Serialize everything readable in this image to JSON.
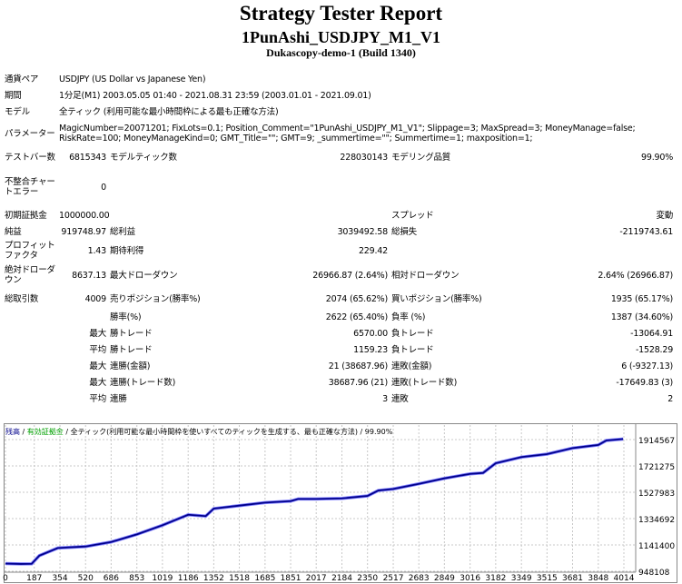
{
  "header": {
    "title": "Strategy Tester Report",
    "subtitle": "1PunAshi_USDJPY_M1_V1",
    "server": "Dukascopy-demo-1 (Build 1340)"
  },
  "info": [
    {
      "label": "通貨ペア",
      "value": "USDJPY (US Dollar vs Japanese Yen)"
    },
    {
      "label": "期間",
      "value": "1分足(M1) 2003.05.05 01:40 - 2021.08.31 23:59 (2003.01.01 - 2021.09.01)"
    },
    {
      "label": "モデル",
      "value": "全ティック (利用可能な最小時間枠による最も正確な方法)"
    },
    {
      "label": "パラメーター",
      "value": "MagicNumber=20071201; FixLots=0.1; Position_Comment=\"1PunAshi_USDJPY_M1_V1\"; Slippage=3; MaxSpread=3; MoneyManage=false; RiskRate=100; MoneyManageKind=0; GMT_Title=\"\"; GMT=9; _summertime=\"\"; Summertime=1; maxposition=1;"
    }
  ],
  "stats": [
    [
      "テストバー数",
      "6815343",
      "モデルティック数",
      "228030143",
      "モデリング品質",
      "99.90%"
    ],
    [
      "不整合チャートエラー",
      "0",
      "",
      "",
      "",
      ""
    ],
    [
      "初期証拠金",
      "1000000.00",
      "",
      "",
      "スプレッド",
      "変動"
    ],
    [
      "純益",
      "919748.97",
      "総利益",
      "3039492.58",
      "総損失",
      "-2119743.61"
    ],
    [
      "プロフィットファクタ",
      "1.43",
      "期待利得",
      "229.42",
      "",
      ""
    ],
    [
      "絶対ドローダウン",
      "8637.13",
      "最大ドローダウン",
      "26966.87 (2.64%)",
      "相対ドローダウン",
      "2.64% (26966.87)"
    ],
    [
      "総取引数",
      "4009",
      "売りポジション(勝率%)",
      "2074 (65.62%)",
      "買いポジション(勝率%)",
      "1935 (65.17%)"
    ],
    [
      "",
      "",
      "勝率(%)",
      "2622 (65.40%)",
      "負率 (%)",
      "1387 (34.60%)"
    ],
    [
      "",
      "最大",
      "勝トレード",
      "6570.00",
      "負トレード",
      "-13064.91"
    ],
    [
      "",
      "平均",
      "勝トレード",
      "1159.23",
      "負トレード",
      "-1528.29"
    ],
    [
      "",
      "最大",
      "連勝(金額)",
      "21 (38687.96)",
      "連敗(金額)",
      "6 (-9327.13)"
    ],
    [
      "",
      "最大",
      "連勝(トレード数)",
      "38687.96 (21)",
      "連敗(トレード数)",
      "-17649.83 (3)"
    ],
    [
      "",
      "平均",
      "連勝",
      "3",
      "連敗",
      "2"
    ]
  ],
  "chart_data": {
    "type": "line",
    "legend": {
      "balance": "残高",
      "equity": "有効証拠金",
      "model": "全ティック(利用可能な最小時間枠を使いすべてのティックを生成する、最も正確な方法)",
      "quality": "99.90%",
      "separator": "/"
    },
    "colors": {
      "balance": "#00008b",
      "equity": "#00a000",
      "grid": "#c8c8c8"
    },
    "x_ticks": [
      "0",
      "187",
      "354",
      "520",
      "686",
      "853",
      "1019",
      "1186",
      "1352",
      "1518",
      "1685",
      "1851",
      "2017",
      "2184",
      "2350",
      "2517",
      "2683",
      "2849",
      "3016",
      "3182",
      "3349",
      "3515",
      "3681",
      "3848",
      "4014"
    ],
    "y_ticks": [
      "948108",
      "1141400",
      "1334692",
      "1527983",
      "1721275",
      "1914567"
    ],
    "xlim": [
      0,
      4140
    ],
    "ylim": [
      948108,
      2020000
    ],
    "grid": true,
    "series": [
      {
        "name": "残高",
        "x": [
          0,
          100,
          170,
          220,
          340,
          520,
          686,
          853,
          1019,
          1186,
          1300,
          1352,
          1518,
          1685,
          1851,
          1900,
          2017,
          2184,
          2350,
          2420,
          2517,
          2683,
          2849,
          3016,
          3100,
          3182,
          3349,
          3515,
          3681,
          3848,
          3900,
          4009
        ],
        "y": [
          1005000,
          1002000,
          1003000,
          1063000,
          1119000,
          1130000,
          1163000,
          1219000,
          1286000,
          1363000,
          1353000,
          1408000,
          1430000,
          1452000,
          1463000,
          1479000,
          1479000,
          1483000,
          1501000,
          1541000,
          1552000,
          1590000,
          1630000,
          1663000,
          1670000,
          1741000,
          1786000,
          1808000,
          1852000,
          1875000,
          1908000,
          1919000
        ]
      }
    ]
  }
}
